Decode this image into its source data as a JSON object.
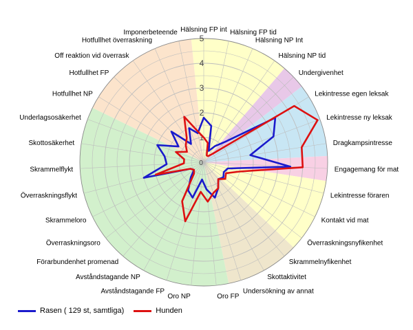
{
  "chart_data": {
    "type": "radar",
    "title": "",
    "rmax": 5,
    "rticks": [
      "1",
      "2",
      "3",
      "4",
      "5"
    ],
    "grid": true,
    "legend_position": "bottom-left",
    "categories": [
      "Hälsning FP int",
      "Hälsning FP tid",
      "Hälsning NP Int",
      "Hälsning NP tid",
      "Undergivenhet",
      "Lekintresse egen leksak",
      "Lekintresse ny leksak",
      "Dragkampsintresse",
      "Engagemang för mat",
      "Lekintresse föraren",
      "Kontakt vid mat",
      "Överraskningsnyfikenhet",
      "Skrammelnyfikenhet",
      "Skottaktivitet",
      "Undersökning av annat",
      "Oro FP",
      "Oro NP",
      "Avståndstagande FP",
      "Avståndstagande NP",
      "Förarbundenhet promenad",
      "Överraskningsoro",
      "Skrammeloro",
      "Överraskningsflykt",
      "Skrammelflykt",
      "Skottosäkerhet",
      "Underlagsosäkerhet",
      "Hotfullhet NP",
      "Hotfullhet FP",
      "Off reaktion vid överrask",
      "Hotfullhet överraskning",
      "Imponerbeteende"
    ],
    "series": [
      {
        "name": "Rasen ( 129 st, samtliga)",
        "color": "#1a1acc",
        "values": [
          1.8,
          1.5,
          0.5,
          0.8,
          1.2,
          3.4,
          3.0,
          1.9,
          3.5,
          1.0,
          0.9,
          1.0,
          0.9,
          1.2,
          1.5,
          1.1,
          0.7,
          1.5,
          1.3,
          0.8,
          0.5,
          0.6,
          2.5,
          1.5,
          1.6,
          2.0,
          1.2,
          1.8,
          0.9,
          1.5,
          1.2
        ]
      },
      {
        "name": "Hunden",
        "color": "#dd1111",
        "values": [
          1.0,
          0.8,
          0.3,
          0.3,
          0.5,
          4.3,
          4.9,
          4.0,
          4.0,
          1.5,
          1.0,
          1.1,
          0.9,
          1.2,
          1.3,
          1.6,
          1.2,
          2.5,
          1.8,
          0.6,
          0.5,
          0.6,
          2.0,
          0.8,
          0.8,
          1.2,
          0.8,
          1.0,
          1.2,
          2.0,
          1.3
        ]
      }
    ],
    "background_sectors": [
      {
        "from": "Hälsning FP int",
        "to": "Hälsning NP tid",
        "color": "#ffffc8"
      },
      {
        "from": "Undergivenhet",
        "to": "Undergivenhet",
        "color": "#e8c8e8"
      },
      {
        "from": "Lekintresse egen leksak",
        "to": "Dragkampsintresse",
        "color": "#c8e6f4"
      },
      {
        "from": "Engagemang för mat",
        "to": "Engagemang för mat",
        "color": "#f8d0e4"
      },
      {
        "from": "Lekintresse föraren",
        "to": "Överraskningsnyfikenhet",
        "color": "#ffffc8"
      },
      {
        "from": "Skrammelnyfikenhet",
        "to": "Undersökning av annat",
        "color": "#efe6cc"
      },
      {
        "from": "Oro FP",
        "to": "Underlagsosäkerhet",
        "color": "#d2f0cc"
      },
      {
        "from": "Hotfullhet NP",
        "to": "Imponerbeteende",
        "color": "#fce4cc"
      }
    ]
  }
}
